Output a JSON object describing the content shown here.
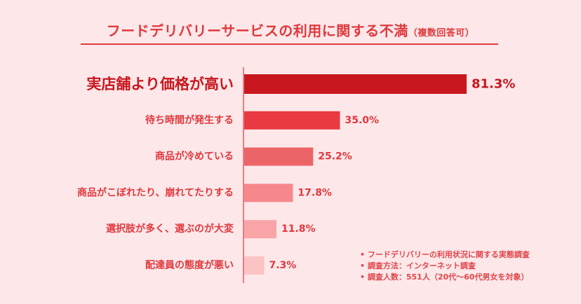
{
  "title": "フードデリバリーサービスの利用に関する不満",
  "subtitle": "（複数回答可）",
  "chart_data": {
    "type": "bar",
    "orientation": "horizontal",
    "title": "フードデリバリーサービスの利用に関する不満（複数回答可）",
    "categories": [
      "実店舗より価格が高い",
      "待ち時間が発生する",
      "商品が冷めている",
      "商品がこぼれたり、崩れてたりする",
      "選択肢が多く、選ぶのが大変",
      "配達員の態度が悪い"
    ],
    "values": [
      81.3,
      35.0,
      25.2,
      17.8,
      11.8,
      7.3
    ],
    "labels": [
      "81.3%",
      "35.0%",
      "25.2%",
      "17.8%",
      "11.8%",
      "7.3%"
    ],
    "colors": [
      "#c8171e",
      "#e83a40",
      "#ec6467",
      "#f6878b",
      "#f9a4a7",
      "#fcc3c5"
    ],
    "xlim": [
      0,
      81.3
    ],
    "grid": false
  },
  "notes": [
    "フードデリバリーの利用状況に関する実態調査",
    "調査方法：インターネット調査",
    "調査人数：551人（20代〜60代男女を対象）"
  ],
  "colors": {
    "background": "#fde7e9",
    "accent": "#e0393e"
  }
}
